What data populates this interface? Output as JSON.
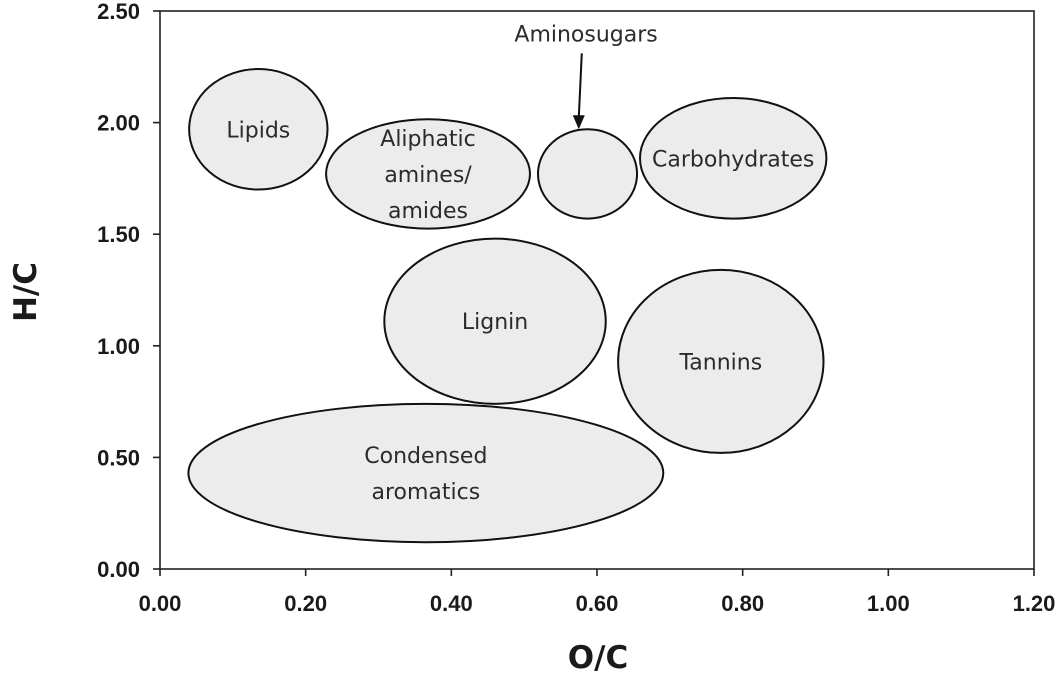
{
  "chart_data": {
    "type": "diagram",
    "xlabel": "O/C",
    "ylabel": "H/C",
    "xlim": [
      0,
      1.2
    ],
    "ylim": [
      0,
      2.5
    ],
    "x_ticks": [
      "0.00",
      "0.20",
      "0.40",
      "0.60",
      "0.80",
      "1.00",
      "1.20"
    ],
    "y_ticks": [
      "0.00",
      "0.50",
      "1.00",
      "1.50",
      "2.00",
      "2.50"
    ],
    "grid": false,
    "regions": [
      {
        "name": "lipids",
        "lines": [
          "Lipids"
        ],
        "center": [
          0.135,
          1.97
        ],
        "radius": [
          0.095,
          0.27
        ]
      },
      {
        "name": "aliphatic-amines-amides",
        "lines": [
          "Aliphatic",
          "amines/",
          "amides"
        ],
        "center": [
          0.368,
          1.77
        ],
        "radius": [
          0.14,
          0.245
        ]
      },
      {
        "name": "aminosugars",
        "lines": [],
        "center": [
          0.587,
          1.77
        ],
        "radius": [
          0.068,
          0.2
        ]
      },
      {
        "name": "carbohydrates",
        "lines": [
          "Carbohydrates"
        ],
        "center": [
          0.787,
          1.84
        ],
        "radius": [
          0.128,
          0.27
        ]
      },
      {
        "name": "lignin",
        "lines": [
          "Lignin"
        ],
        "center": [
          0.46,
          1.11
        ],
        "radius": [
          0.152,
          0.37
        ]
      },
      {
        "name": "tannins",
        "lines": [
          "Tannins"
        ],
        "center": [
          0.77,
          0.93
        ],
        "radius": [
          0.141,
          0.41
        ]
      },
      {
        "name": "condensed-aromatics",
        "lines": [
          "Condensed",
          "aromatics"
        ],
        "center": [
          0.365,
          0.43
        ],
        "radius": [
          0.326,
          0.31
        ]
      }
    ],
    "annotations": [
      {
        "name": "aminosugars",
        "text": "Aminosugars",
        "points_to": [
          0.575,
          1.97
        ],
        "text_at": [
          0.585,
          2.4
        ]
      }
    ]
  }
}
